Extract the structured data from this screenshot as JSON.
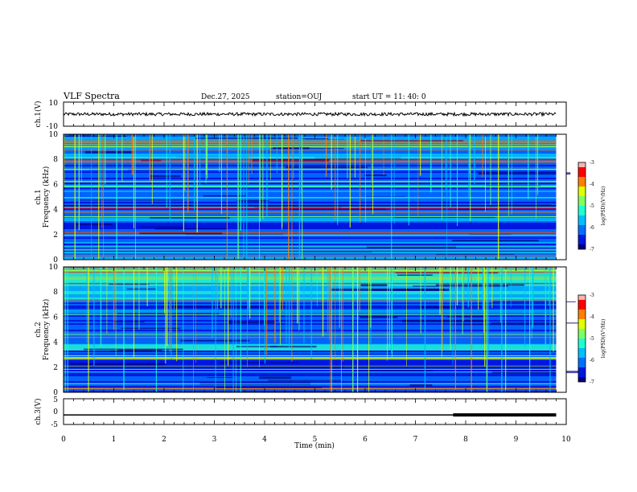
{
  "header": {
    "title": "VLF Spectra",
    "date": "Dec.27, 2025",
    "station": "station=OUJ",
    "start": "start  UT =   11: 40: 0"
  },
  "colors": {
    "c0": "#000080",
    "c1": "#0018e0",
    "c2": "#0070ff",
    "c3": "#00c0ff",
    "c4": "#20ffd0",
    "c5": "#80ff60",
    "c6": "#e0ff00",
    "c7": "#ff8000",
    "c8": "#ff0000",
    "c9": "#ffb0b0"
  },
  "chart_data": [
    {
      "type": "line",
      "name": "ch1-waveform",
      "ylabel": "ch.1(V)",
      "ylim": [
        -10,
        10
      ],
      "yticks": [
        "10",
        "-10"
      ],
      "xlim": [
        0,
        10
      ],
      "signal_level": 0,
      "signal_end_min": 9.8
    },
    {
      "type": "heatmap",
      "name": "ch1-spectrogram",
      "ylabel_channel": "ch.1",
      "ylabel": "Frequency (kHz)",
      "ylim": [
        0,
        10
      ],
      "yticks": [
        "0",
        "2",
        "4",
        "6",
        "8",
        "10"
      ],
      "xlim": [
        0,
        10
      ],
      "data_end_min": 9.8,
      "colorbar": {
        "label": "log(PSD)(V²/Hz)",
        "range": [
          -7,
          -3
        ],
        "ticks": [
          "-3",
          "-4",
          "-5",
          "-6",
          "-7"
        ]
      }
    },
    {
      "type": "heatmap",
      "name": "ch2-spectrogram",
      "ylabel_channel": "ch.2",
      "ylabel": "Frequency (kHz)",
      "ylim": [
        0,
        10
      ],
      "yticks": [
        "0",
        "2",
        "4",
        "6",
        "8",
        "10"
      ],
      "xlim": [
        0,
        10
      ],
      "data_end_min": 9.8,
      "colorbar": {
        "label": "log(PSD)(V²/Hz)",
        "range": [
          -7,
          -3
        ],
        "ticks": [
          "-3",
          "-4",
          "-5",
          "-6",
          "-7"
        ]
      }
    },
    {
      "type": "line",
      "name": "ch3-trace",
      "ylabel": "ch.3(V)",
      "ylim": [
        -5,
        5
      ],
      "yticks": [
        "5",
        "0",
        "-5"
      ],
      "xlim": [
        0,
        10
      ],
      "signal_level": -1.3,
      "thick_start_min": 7.75,
      "signal_end_min": 9.8
    }
  ],
  "xaxis": {
    "label": "Time (min)",
    "ticks": [
      "0",
      "1",
      "2",
      "3",
      "4",
      "5",
      "6",
      "7",
      "8",
      "9",
      "10"
    ]
  }
}
